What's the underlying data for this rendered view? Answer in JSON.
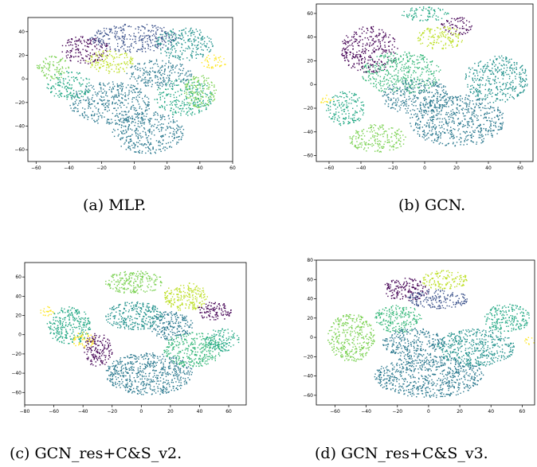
{
  "chart_data": [
    {
      "type": "scatter",
      "caption": "(a) MLP.",
      "xlim": [
        -65,
        60
      ],
      "ylim": [
        -70,
        52
      ],
      "xticks": [
        -60,
        -40,
        -20,
        0,
        20,
        40,
        60
      ],
      "yticks": [
        -60,
        -40,
        -20,
        0,
        20,
        40
      ],
      "colormap": "viridis",
      "clusters": [
        {
          "x": 8,
          "y": -45,
          "rx": 22,
          "ry": 18,
          "color": "#2a788e"
        },
        {
          "x": 30,
          "y": -15,
          "rx": 18,
          "ry": 16,
          "color": "#22a884"
        },
        {
          "x": 40,
          "y": -10,
          "rx": 10,
          "ry": 14,
          "color": "#7ad151"
        },
        {
          "x": -15,
          "y": -20,
          "rx": 25,
          "ry": 18,
          "color": "#2a788e"
        },
        {
          "x": -40,
          "y": -5,
          "rx": 14,
          "ry": 12,
          "color": "#22a884"
        },
        {
          "x": -50,
          "y": 10,
          "rx": 10,
          "ry": 10,
          "color": "#7ad151"
        },
        {
          "x": -30,
          "y": 25,
          "rx": 15,
          "ry": 12,
          "color": "#440154"
        },
        {
          "x": 0,
          "y": 35,
          "rx": 28,
          "ry": 12,
          "color": "#3b528b"
        },
        {
          "x": 30,
          "y": 30,
          "rx": 18,
          "ry": 14,
          "color": "#21918c"
        },
        {
          "x": -15,
          "y": 15,
          "rx": 15,
          "ry": 10,
          "color": "#bddf26"
        },
        {
          "x": 15,
          "y": 5,
          "rx": 20,
          "ry": 12,
          "color": "#2a788e"
        },
        {
          "x": 48,
          "y": 15,
          "rx": 8,
          "ry": 6,
          "color": "#fde725"
        }
      ]
    },
    {
      "type": "scatter",
      "caption": "(b) GCN.",
      "xlim": [
        -68,
        68
      ],
      "ylim": [
        -65,
        68
      ],
      "xticks": [
        -60,
        -40,
        -20,
        0,
        20,
        40,
        60
      ],
      "yticks": [
        -60,
        -40,
        -20,
        0,
        20,
        40,
        60
      ],
      "colormap": "viridis",
      "clusters": [
        {
          "x": 20,
          "y": -30,
          "rx": 30,
          "ry": 22,
          "color": "#2a788e"
        },
        {
          "x": 45,
          "y": 5,
          "rx": 20,
          "ry": 20,
          "color": "#21918c"
        },
        {
          "x": -30,
          "y": -45,
          "rx": 18,
          "ry": 12,
          "color": "#7ad151"
        },
        {
          "x": -50,
          "y": -20,
          "rx": 12,
          "ry": 15,
          "color": "#22a884"
        },
        {
          "x": -35,
          "y": 30,
          "rx": 18,
          "ry": 20,
          "color": "#440154"
        },
        {
          "x": 0,
          "y": 60,
          "rx": 15,
          "ry": 6,
          "color": "#22a884"
        },
        {
          "x": 20,
          "y": 50,
          "rx": 10,
          "ry": 8,
          "color": "#440154"
        },
        {
          "x": 10,
          "y": 40,
          "rx": 15,
          "ry": 10,
          "color": "#bddf26"
        },
        {
          "x": -15,
          "y": 10,
          "rx": 25,
          "ry": 18,
          "color": "#35b779"
        },
        {
          "x": -5,
          "y": -10,
          "rx": 22,
          "ry": 15,
          "color": "#2a788e"
        },
        {
          "x": -62,
          "y": -12,
          "rx": 5,
          "ry": 4,
          "color": "#fde725"
        }
      ]
    },
    {
      "type": "scatter",
      "caption": "(c) GCN_res+C&S_v2.",
      "xlim": [
        -80,
        72
      ],
      "ylim": [
        -73,
        75
      ],
      "xticks": [
        -80,
        -60,
        -40,
        -20,
        0,
        20,
        40,
        60
      ],
      "yticks": [
        -60,
        -40,
        -20,
        0,
        20,
        40,
        60
      ],
      "colormap": "viridis",
      "clusters": [
        {
          "x": 5,
          "y": -40,
          "rx": 30,
          "ry": 22,
          "color": "#2a788e"
        },
        {
          "x": 35,
          "y": -15,
          "rx": 20,
          "ry": 18,
          "color": "#35b779"
        },
        {
          "x": 20,
          "y": 10,
          "rx": 15,
          "ry": 15,
          "color": "#2a788e"
        },
        {
          "x": -50,
          "y": 10,
          "rx": 15,
          "ry": 20,
          "color": "#22a884"
        },
        {
          "x": -30,
          "y": -15,
          "rx": 10,
          "ry": 18,
          "color": "#440154"
        },
        {
          "x": -5,
          "y": 55,
          "rx": 20,
          "ry": 12,
          "color": "#7ad151"
        },
        {
          "x": 30,
          "y": 40,
          "rx": 15,
          "ry": 15,
          "color": "#bddf26"
        },
        {
          "x": 50,
          "y": 25,
          "rx": 12,
          "ry": 10,
          "color": "#440154"
        },
        {
          "x": -5,
          "y": 20,
          "rx": 20,
          "ry": 15,
          "color": "#21918c"
        },
        {
          "x": -65,
          "y": 25,
          "rx": 5,
          "ry": 5,
          "color": "#fde725"
        },
        {
          "x": -40,
          "y": -5,
          "rx": 8,
          "ry": 8,
          "color": "#fde725"
        },
        {
          "x": 55,
          "y": -5,
          "rx": 12,
          "ry": 12,
          "color": "#22a884"
        }
      ]
    },
    {
      "type": "scatter",
      "caption": "(d) GCN_res+C&S_v3.",
      "xlim": [
        -72,
        68
      ],
      "ylim": [
        -70,
        80
      ],
      "xticks": [
        -60,
        -40,
        -20,
        0,
        20,
        40,
        60
      ],
      "yticks": [
        -60,
        -40,
        -20,
        0,
        20,
        40,
        60,
        80
      ],
      "colormap": "viridis",
      "clusters": [
        {
          "x": 0,
          "y": -40,
          "rx": 35,
          "ry": 22,
          "color": "#2a788e"
        },
        {
          "x": 30,
          "y": -10,
          "rx": 25,
          "ry": 20,
          "color": "#21918c"
        },
        {
          "x": 50,
          "y": 20,
          "rx": 15,
          "ry": 15,
          "color": "#22a884"
        },
        {
          "x": -50,
          "y": 0,
          "rx": 15,
          "ry": 25,
          "color": "#7ad151"
        },
        {
          "x": -20,
          "y": 20,
          "rx": 15,
          "ry": 15,
          "color": "#35b779"
        },
        {
          "x": -15,
          "y": 50,
          "rx": 15,
          "ry": 12,
          "color": "#440154"
        },
        {
          "x": 10,
          "y": 60,
          "rx": 15,
          "ry": 10,
          "color": "#bddf26"
        },
        {
          "x": 5,
          "y": 40,
          "rx": 20,
          "ry": 10,
          "color": "#3b528b"
        },
        {
          "x": -10,
          "y": -5,
          "rx": 20,
          "ry": 15,
          "color": "#2a788e"
        },
        {
          "x": 65,
          "y": -3,
          "rx": 4,
          "ry": 4,
          "color": "#fde725"
        }
      ]
    }
  ]
}
